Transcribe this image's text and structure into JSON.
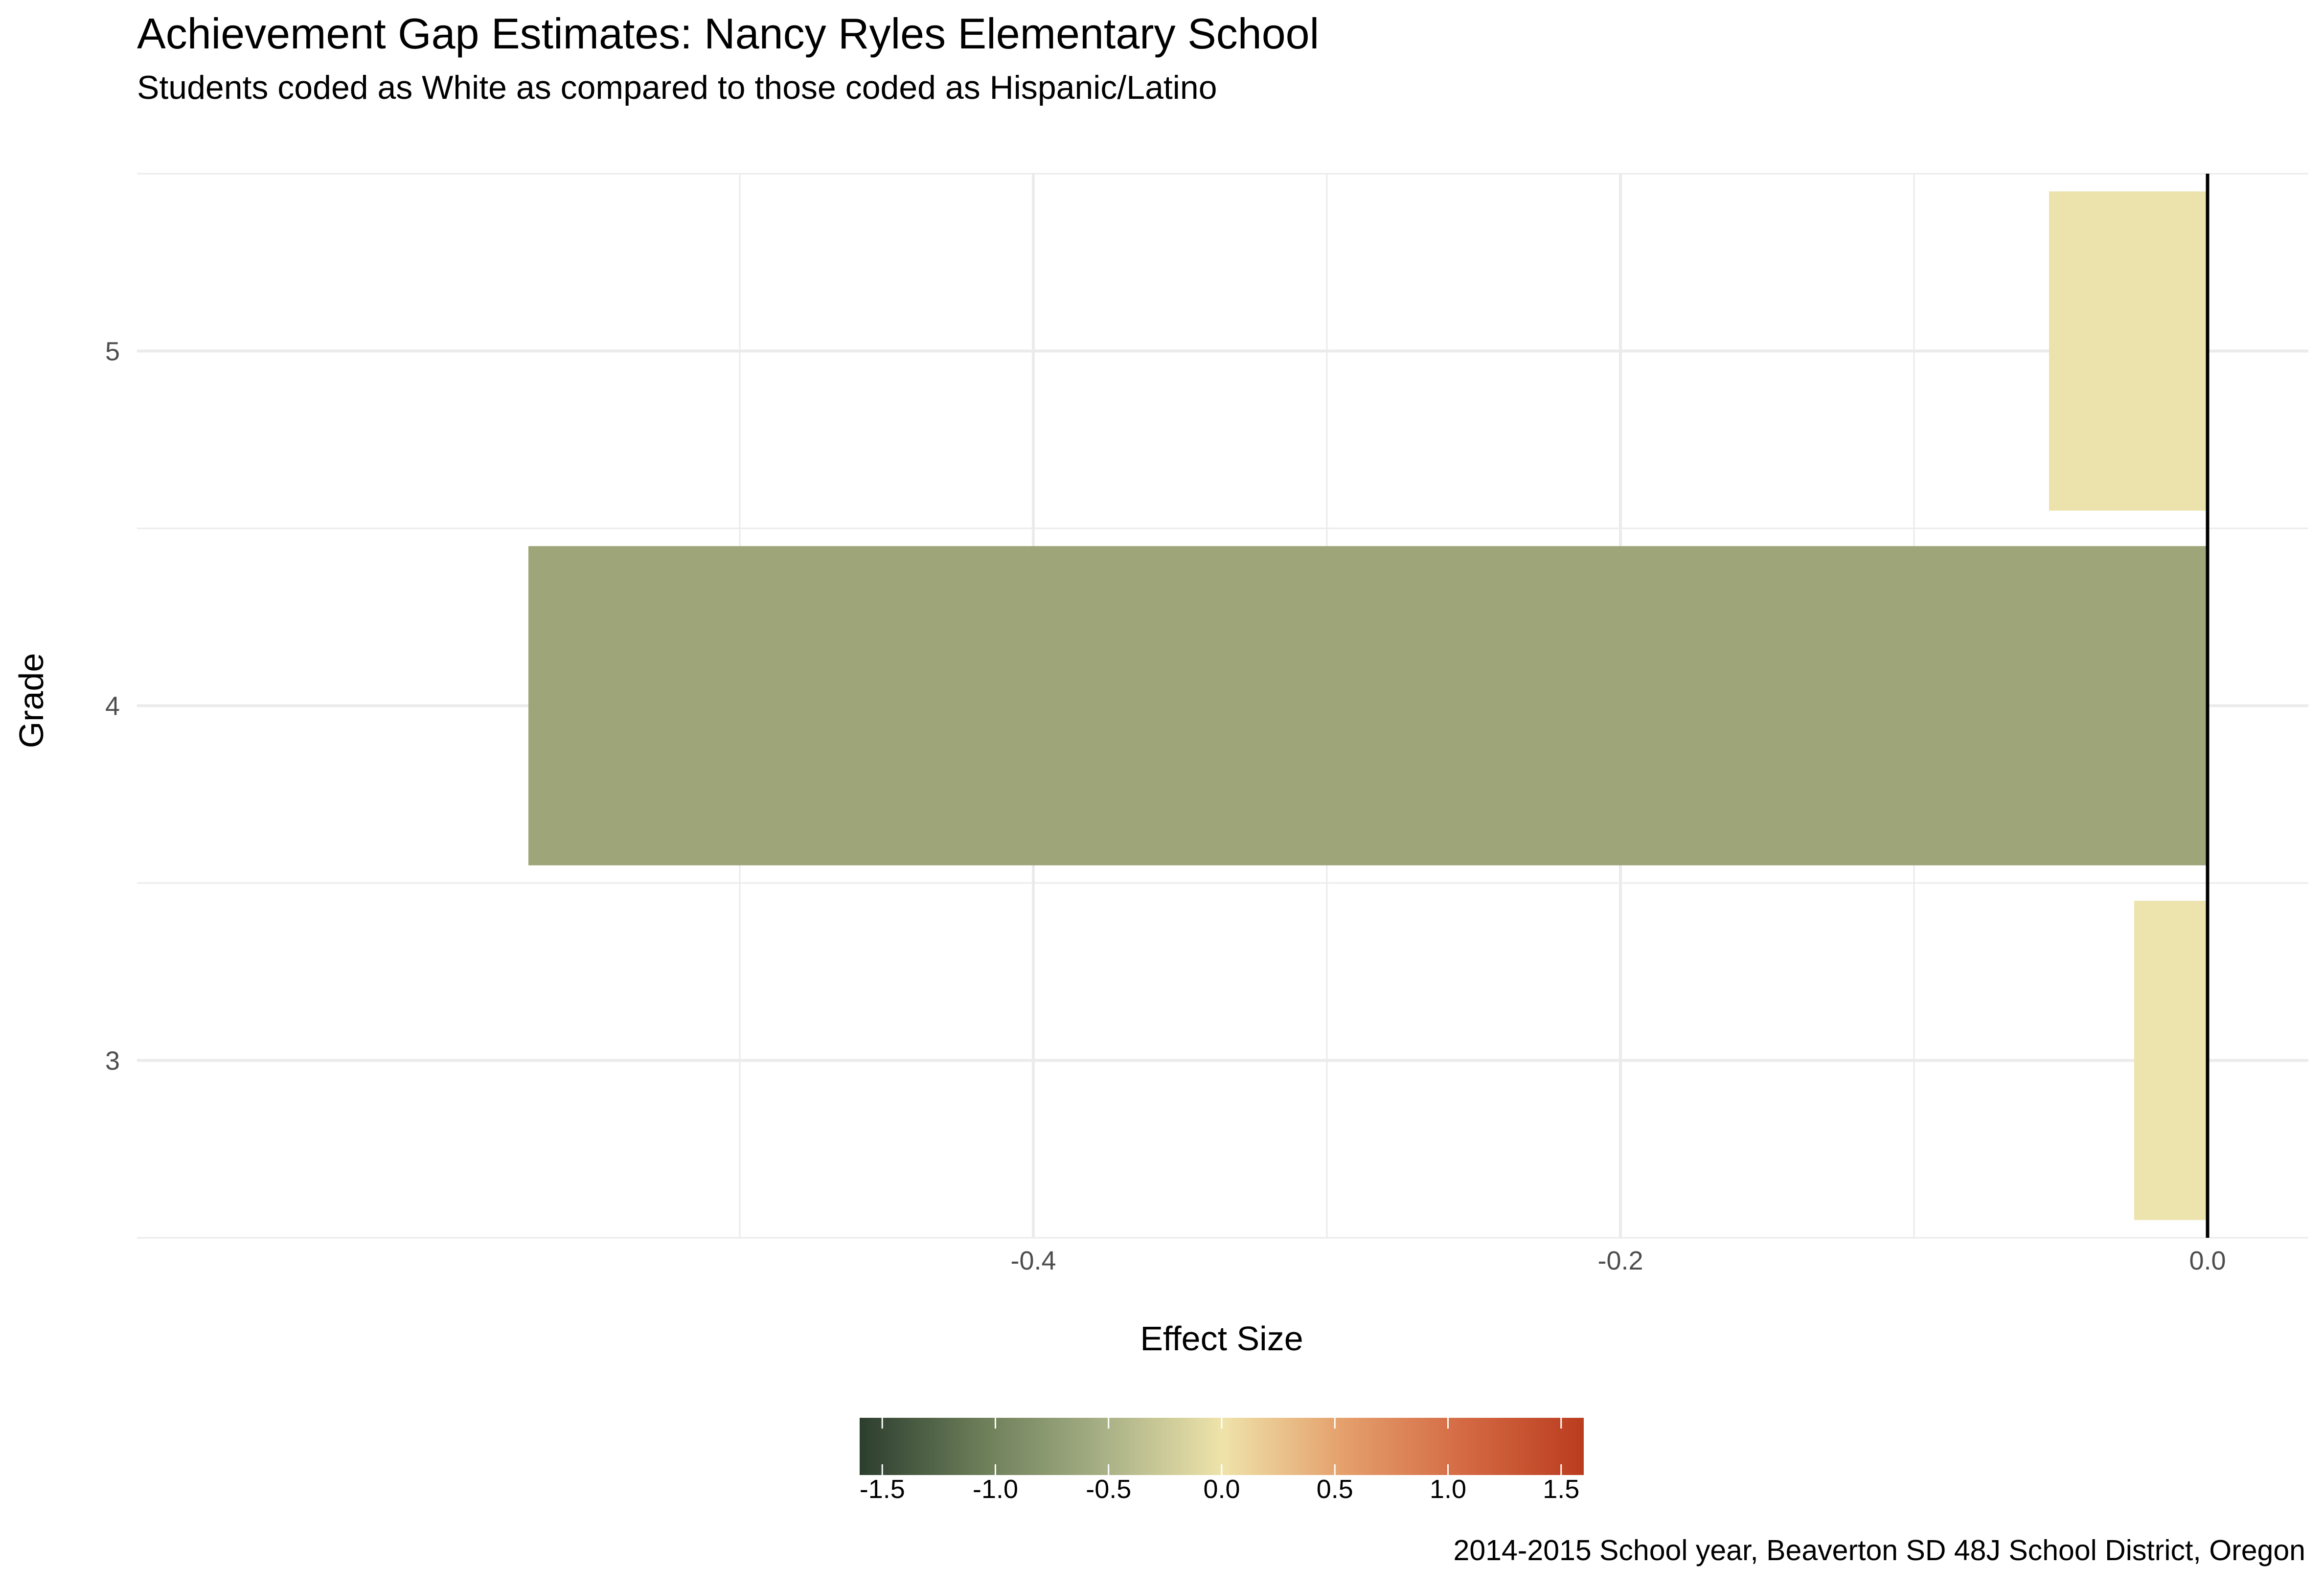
{
  "chart_data": {
    "type": "bar",
    "orientation": "horizontal",
    "title": "Achievement Gap Estimates: Nancy Ryles Elementary School",
    "subtitle": "Students coded as White as compared to those coded as Hispanic/Latino",
    "caption": "2014-2015 School year, Beaverton SD 48J School District, Oregon",
    "xlabel": "Effect Size",
    "ylabel": "Grade",
    "categories": [
      "3",
      "4",
      "5"
    ],
    "values": [
      -0.025,
      -0.572,
      -0.054
    ],
    "bar_colors": [
      "#EDE3AD",
      "#9DA579",
      "#EBE2AC"
    ],
    "xlim": [
      -0.6,
      0.03
    ],
    "x_ticks": [
      -0.4,
      -0.2,
      0.0
    ],
    "x_tick_labels": [
      "-0.4",
      "-0.2",
      "0.0"
    ],
    "grid": true,
    "reference_line_x": 0,
    "legend": {
      "type": "colorbar",
      "position": "bottom",
      "range": [
        -1.6,
        1.6
      ],
      "ticks": [
        -1.5,
        -1.0,
        -0.5,
        0.0,
        0.5,
        1.0,
        1.5
      ],
      "tick_labels": [
        "-1.5",
        "-1.0",
        "-0.5",
        "0.0",
        "0.5",
        "1.0",
        "1.5"
      ],
      "colors": [
        "#2C3E2E",
        "#6B7D58",
        "#A6AF85",
        "#EEE3AA",
        "#E5A06C",
        "#D46A44",
        "#BA3C1E"
      ]
    }
  }
}
